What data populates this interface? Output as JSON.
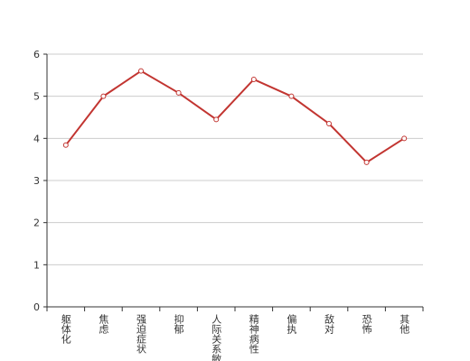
{
  "chart_data": {
    "type": "line",
    "categories": [
      "躯体化",
      "焦虑",
      "强迫症状",
      "抑郁",
      "人际关系敏感",
      "精神病性",
      "偏执",
      "敌对",
      "恐怖",
      "其他"
    ],
    "series": [
      {
        "color": "#c23531",
        "values": [
          3.84,
          5.0,
          5.6,
          5.08,
          4.45,
          5.4,
          5.0,
          4.35,
          3.43,
          4.0
        ]
      }
    ],
    "ylim": [
      0,
      6
    ],
    "yticks": [
      0,
      1,
      2,
      3,
      4,
      5,
      6
    ],
    "grid": true
  }
}
